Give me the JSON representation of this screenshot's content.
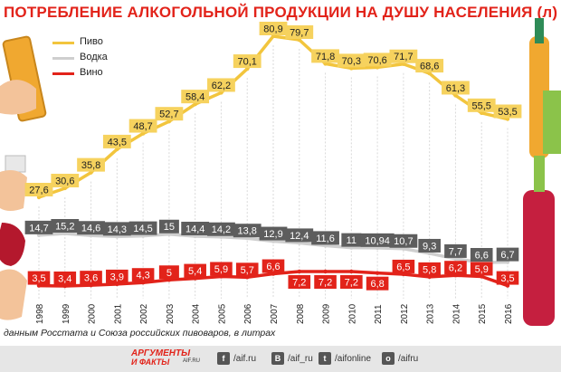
{
  "title": "ПОТРЕБЛЕНИЕ АЛКОГОЛЬНОЙ ПРОДУКЦИИ НА ДУШУ НАСЕЛЕНИЯ (л)",
  "source_note": "данным Росстата и Союза российских пивоваров, в литрах",
  "brand": {
    "line1": "АРГУМЕНТЫ",
    "line2": "И ФАКТЫ",
    "url": "AIF.RU"
  },
  "social": [
    {
      "icon": "f",
      "label": "/aif.ru",
      "name": "facebook-icon"
    },
    {
      "icon": "В",
      "label": "/aif_ru",
      "name": "vk-icon"
    },
    {
      "icon": "t",
      "label": "/aifonline",
      "name": "twitter-icon"
    },
    {
      "icon": "о",
      "label": "/aifru",
      "name": "odnoklassniki-icon"
    }
  ],
  "colors": {
    "beer": "#f2c53d",
    "vodka": "#cfcfcf",
    "wine": "#e2231a",
    "beer_label_bg": "#f6d25e",
    "vodka_label_bg": "#5d5d5d",
    "wine_label_bg": "#e2231a"
  },
  "chart_data": {
    "type": "line",
    "x": [
      "1998",
      "1999",
      "2000",
      "2001",
      "2002",
      "2003",
      "2004",
      "2005",
      "2006",
      "2007",
      "2008",
      "2009",
      "2010",
      "2011",
      "2012",
      "2013",
      "2014",
      "2015",
      "2016"
    ],
    "series": [
      {
        "name": "Пиво",
        "values": [
          27.6,
          30.6,
          35.8,
          43.5,
          48.7,
          52.7,
          58.4,
          62.2,
          70.1,
          80.9,
          79.7,
          71.8,
          70.3,
          70.6,
          71.7,
          68.6,
          61.3,
          55.5,
          53.5
        ],
        "labels": [
          "27,6",
          "30,6",
          "35,8",
          "43,5",
          "48,7",
          "52,7",
          "58,4",
          "62,2",
          "70,1",
          "80,9",
          "79,7",
          "71,8",
          "70,3",
          "70,6",
          "71,7",
          "68,6",
          "61,3",
          "55,5",
          "53,5"
        ]
      },
      {
        "name": "Водка",
        "values": [
          14.7,
          15.2,
          14.6,
          14.3,
          14.5,
          15,
          14.4,
          14.2,
          13.8,
          12.9,
          12.4,
          11.6,
          11,
          10.94,
          10.7,
          9.3,
          7.7,
          6.6,
          6.7
        ],
        "labels": [
          "14,7",
          "15,2",
          "14,6",
          "14,3",
          "14,5",
          "15",
          "14,4",
          "14,2",
          "13,8",
          "12,9",
          "12,4",
          "11,6",
          "11",
          "10,94",
          "10,7",
          "9,3",
          "7,7",
          "6,6",
          "6,7"
        ]
      },
      {
        "name": "Вино",
        "values": [
          3.5,
          3.4,
          3.6,
          3.9,
          4.3,
          5,
          5.4,
          5.9,
          5.7,
          6.6,
          7.2,
          7.2,
          7.2,
          6.8,
          6.5,
          5.8,
          6.2,
          5.9,
          3.5
        ],
        "labels": [
          "3,5",
          "3,4",
          "3,6",
          "3,9",
          "4,3",
          "5",
          "5,4",
          "5,9",
          "5,7",
          "6,6",
          "7,2",
          "7,2",
          "7,2",
          "6,8",
          "6,5",
          "5,8",
          "6,2",
          "5,9",
          "3,5"
        ]
      }
    ],
    "legend": "top-left",
    "grid": "vertical"
  }
}
